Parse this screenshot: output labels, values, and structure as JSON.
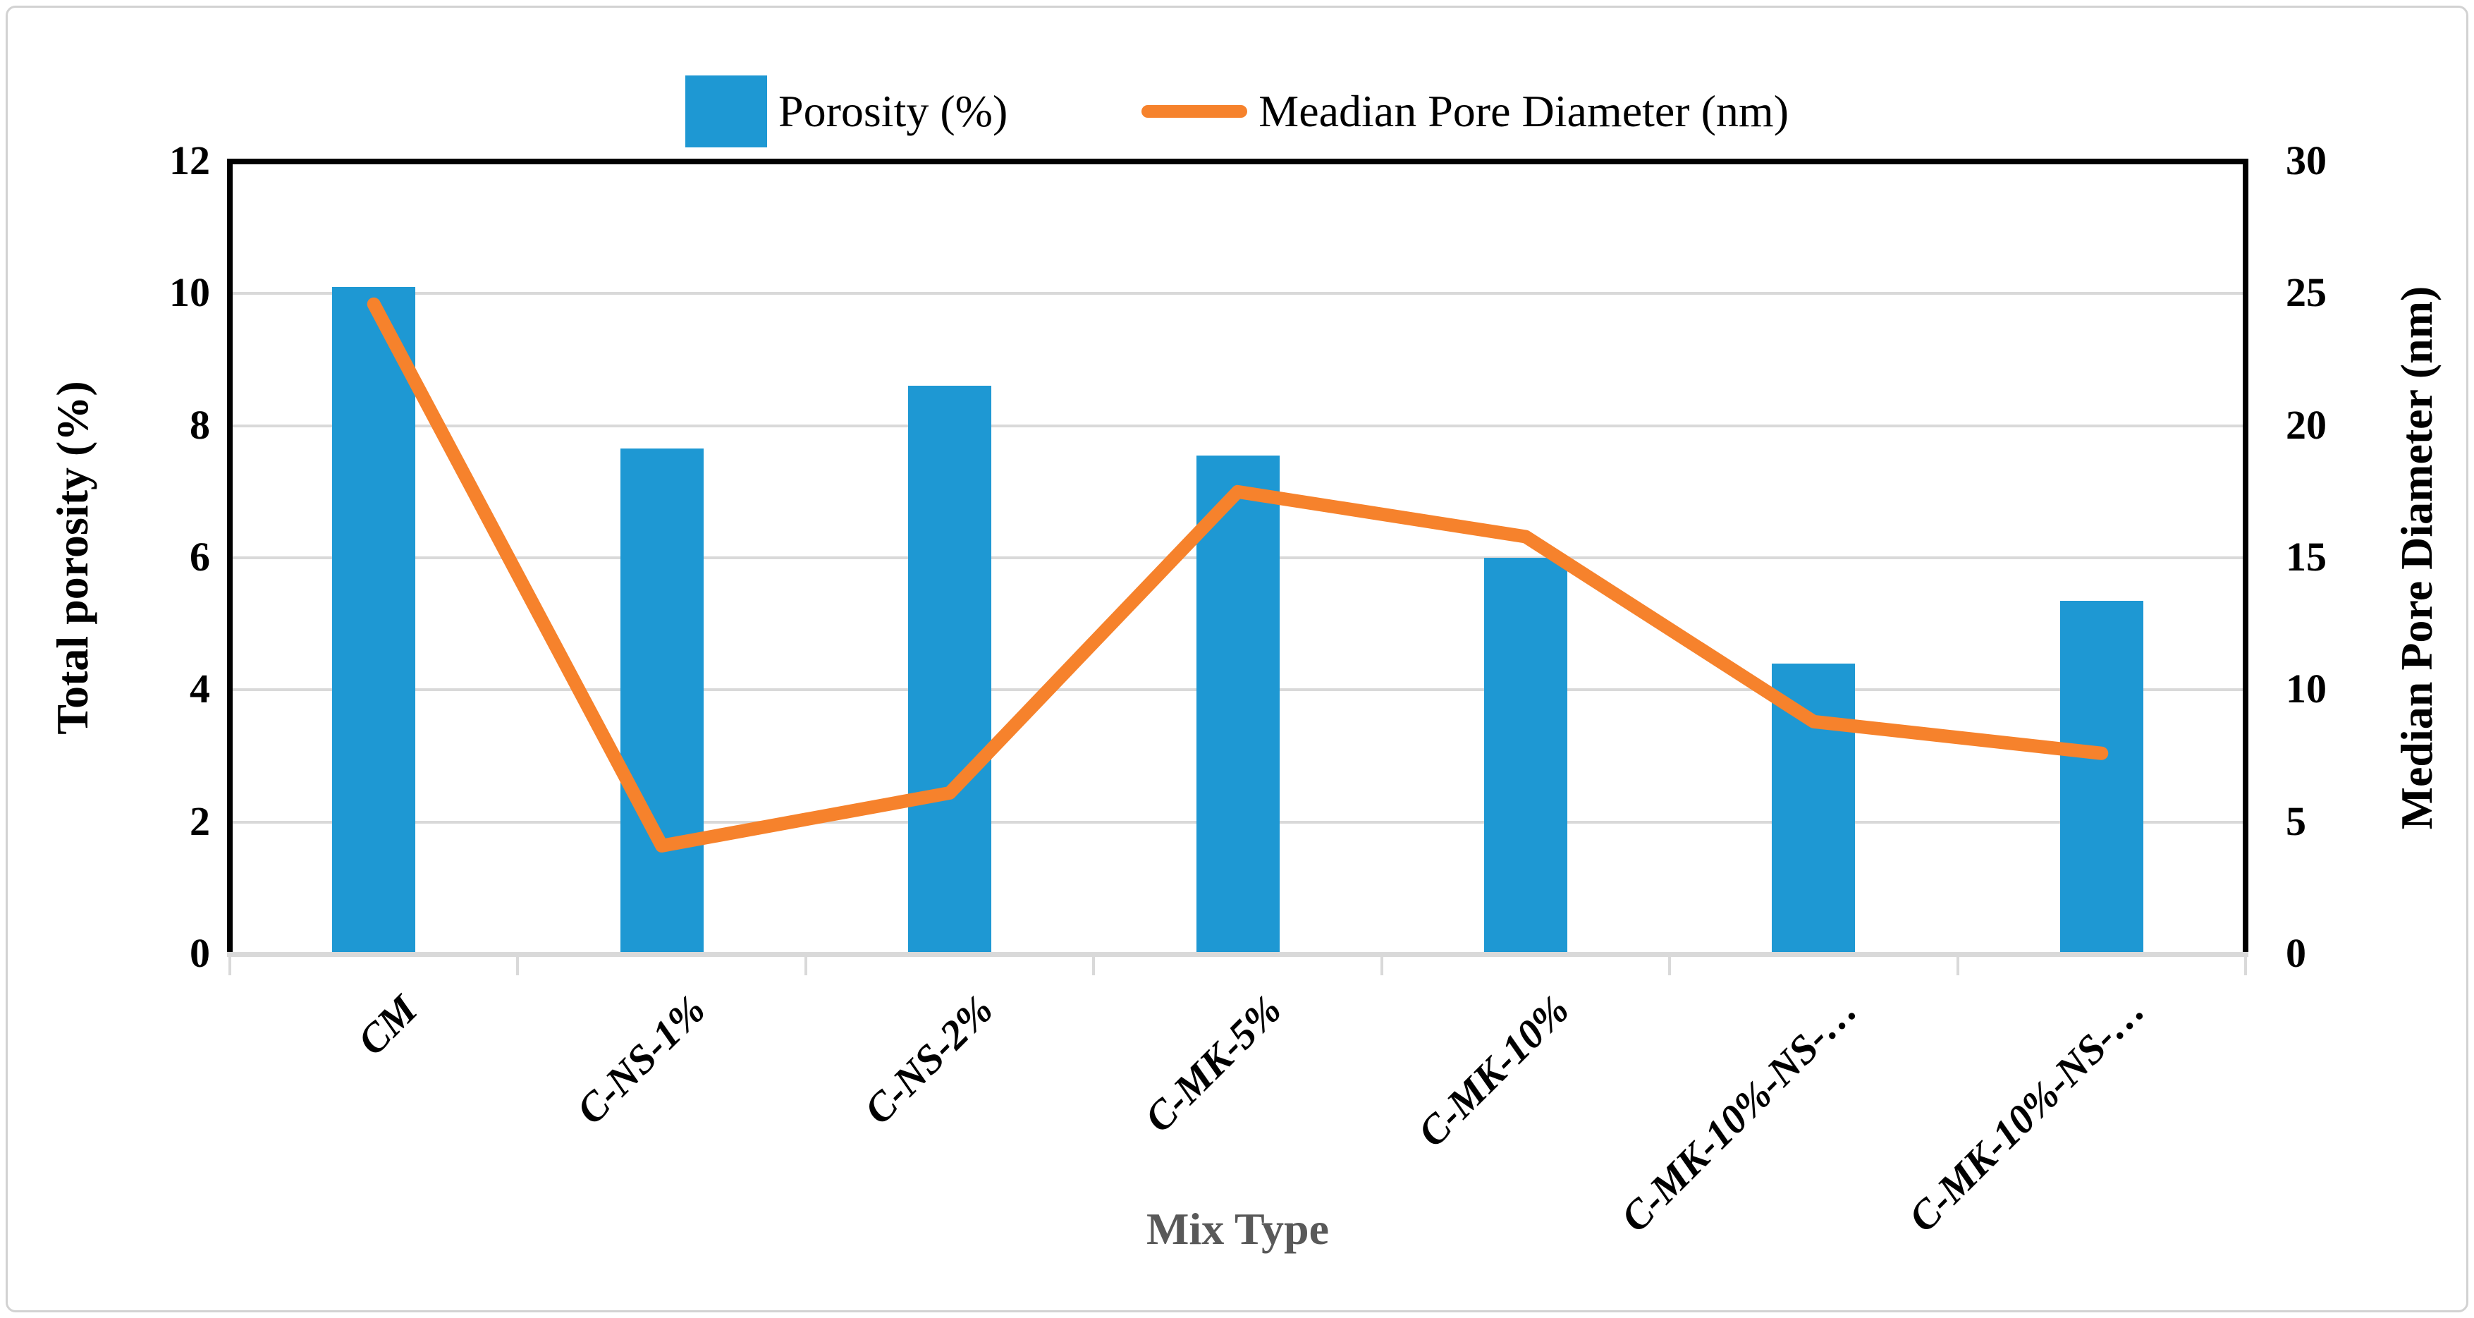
{
  "legend": {
    "porosity_label": "Porosity (%)",
    "median_label": "Meadian Pore Diameter (nm)"
  },
  "axes": {
    "left_title": "Total porosity (%)",
    "right_title": "Median Pore Diameter (nm)",
    "x_title": "Mix Type"
  },
  "colors": {
    "bar": "#1e98d3",
    "line": "#f6822c",
    "grid": "#d9d9d9",
    "plot_border": "#000000",
    "x_title_color": "#595959",
    "outer_frame": "#d2d2d2"
  },
  "chart_data": {
    "type": "combo",
    "categories": [
      "CM",
      "C-NS-1%",
      "C-NS-2%",
      "C-MK-5%",
      "C-MK-10%",
      "C-MK-10%-NS-…",
      "C-MK-10%-NS-…"
    ],
    "series": [
      {
        "name": "Porosity (%)",
        "type": "bar",
        "axis": "left",
        "color": "#1e98d3",
        "values": [
          10.1,
          7.65,
          8.6,
          7.55,
          6.0,
          4.4,
          5.35
        ]
      },
      {
        "name": "Meadian Pore Diameter (nm)",
        "type": "line",
        "axis": "right",
        "color": "#f6822c",
        "values": [
          24.6,
          4.1,
          6.1,
          17.5,
          15.8,
          8.8,
          7.6
        ]
      }
    ],
    "left_axis": {
      "title": "Total porosity (%)",
      "min": 0,
      "max": 12,
      "ticks": [
        0,
        2,
        4,
        6,
        8,
        10,
        12
      ]
    },
    "right_axis": {
      "title": "Median Pore Diameter (nm)",
      "min": 0,
      "max": 30,
      "ticks": [
        0,
        5,
        10,
        15,
        20,
        25,
        30
      ]
    },
    "x_axis": {
      "title": "Mix Type"
    },
    "legend_position": "top-center",
    "grid": "horizontal gridlines at left-axis ticks 2,4,6,8,10"
  }
}
